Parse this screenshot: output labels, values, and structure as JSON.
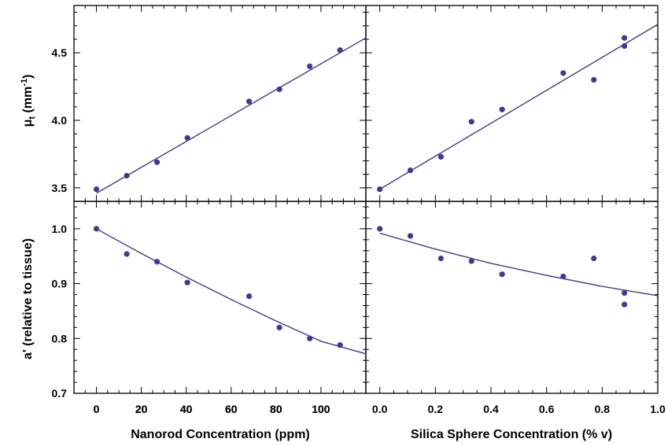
{
  "chart_data": [
    {
      "panel": "top-left",
      "type": "scatter",
      "xlim": [
        -10,
        120
      ],
      "ylim": [
        3.4,
        4.85
      ],
      "xticks": [
        0,
        20,
        40,
        60,
        80,
        100
      ],
      "yticks": [
        "3.5",
        "4.0",
        "4.5"
      ],
      "ylabel": "μt (mm-1)",
      "ylabel_parts": {
        "mu": "μ",
        "sub": "t",
        "unit_open": " (mm",
        "sup": "-1",
        "unit_close": ")"
      },
      "series": [
        {
          "x": [
            0,
            13.5,
            27,
            40.5,
            68,
            81.5,
            95,
            108.5
          ],
          "y": [
            3.49,
            3.59,
            3.69,
            3.87,
            4.14,
            4.23,
            4.4,
            4.52
          ]
        }
      ],
      "fit": {
        "x": [
          0,
          120
        ],
        "y": [
          3.46,
          4.61
        ]
      }
    },
    {
      "panel": "top-right",
      "type": "scatter",
      "xlim": [
        -0.05,
        1.0
      ],
      "ylim": [
        3.4,
        4.85
      ],
      "series": [
        {
          "x": [
            0.0,
            0.11,
            0.22,
            0.33,
            0.44,
            0.66,
            0.77,
            0.88,
            0.88
          ],
          "y": [
            3.49,
            3.63,
            3.73,
            3.99,
            4.08,
            4.35,
            4.3,
            4.61,
            4.55
          ]
        }
      ],
      "fit": {
        "x": [
          0.0,
          1.0
        ],
        "y": [
          3.49,
          4.71
        ]
      }
    },
    {
      "panel": "bottom-left",
      "type": "scatter",
      "xlim": [
        -10,
        120
      ],
      "ylim": [
        0.7,
        1.05
      ],
      "xticks": [
        "0",
        "20",
        "40",
        "60",
        "80",
        "100"
      ],
      "yticks": [
        "0.7",
        "0.8",
        "0.9",
        "1.0"
      ],
      "xlabel": "Nanorod Concentration (ppm)",
      "ylabel": "a' (relative to tissue)",
      "series": [
        {
          "x": [
            0,
            13.5,
            27,
            40.5,
            68,
            81.5,
            95,
            108.5
          ],
          "y": [
            1.0,
            0.954,
            0.94,
            0.902,
            0.877,
            0.82,
            0.8,
            0.788
          ]
        }
      ],
      "fit": {
        "x": [
          0,
          20,
          40,
          60,
          80,
          100,
          120
        ],
        "y": [
          1.0,
          0.955,
          0.912,
          0.871,
          0.832,
          0.795,
          0.772
        ]
      }
    },
    {
      "panel": "bottom-right",
      "type": "scatter",
      "xlim": [
        -0.05,
        1.0
      ],
      "ylim": [
        0.7,
        1.05
      ],
      "xticks": [
        "0.0",
        "0.2",
        "0.4",
        "0.6",
        "0.8",
        "1.0"
      ],
      "xlabel": "Silica Sphere Concentration (% v)",
      "series": [
        {
          "x": [
            0.0,
            0.11,
            0.22,
            0.33,
            0.44,
            0.66,
            0.77,
            0.88,
            0.88
          ],
          "y": [
            1.0,
            0.987,
            0.946,
            0.941,
            0.917,
            0.913,
            0.946,
            0.883,
            0.862
          ]
        }
      ],
      "fit": {
        "x": [
          0.0,
          0.2,
          0.4,
          0.6,
          0.8,
          1.0
        ],
        "y": [
          0.992,
          0.963,
          0.937,
          0.915,
          0.895,
          0.878
        ]
      }
    }
  ],
  "colors": {
    "points": "#3f3a8c",
    "fit": "#3f3a8c",
    "axes": "#000000"
  }
}
